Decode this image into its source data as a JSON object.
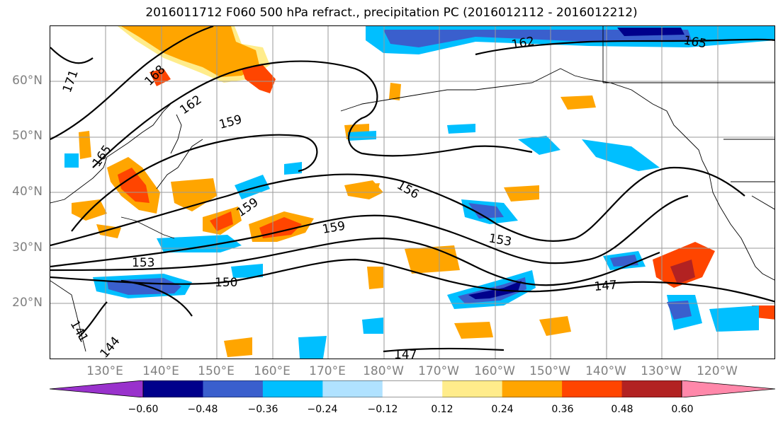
{
  "title": "2016011712 F060 500 hPa refract., precipitation PC (2016012112 - 2016012212)",
  "lat_labels": [
    "60°N",
    "50°N",
    "40°N",
    "30°N",
    "20°N"
  ],
  "lon_labels": [
    "130°E",
    "140°E",
    "150°E",
    "160°E",
    "170°E",
    "180°W",
    "170°W",
    "160°W",
    "150°W",
    "140°W",
    "130°W",
    "120°W"
  ],
  "contour_labels": [
    "171",
    "168",
    "165",
    "162",
    "159",
    "159",
    "159",
    "156",
    "153",
    "153",
    "150",
    "147",
    "147",
    "144",
    "141",
    "162",
    "165"
  ],
  "colorbar": {
    "ticks": [
      "−0.60",
      "−0.48",
      "−0.36",
      "−0.24",
      "−0.12",
      "0.12",
      "0.24",
      "0.36",
      "0.48",
      "0.60"
    ],
    "colors": [
      "#9932cc",
      "#00008b",
      "#3a5fcd",
      "#00bfff",
      "#b0e2ff",
      "#ffffff",
      "#ffec8b",
      "#ffa500",
      "#ff4500",
      "#b22222",
      "#ff88aa"
    ]
  }
}
